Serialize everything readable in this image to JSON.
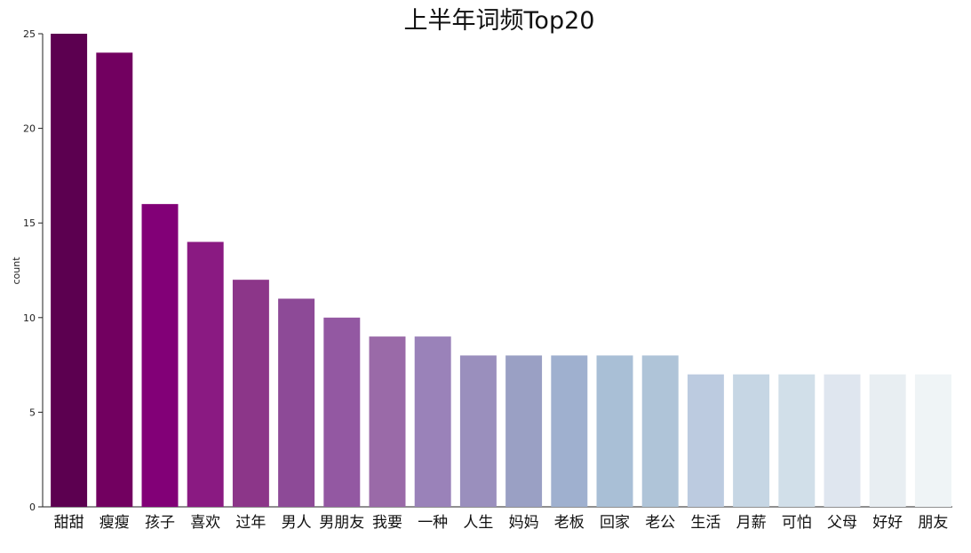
{
  "chart_data": {
    "type": "bar",
    "title": "上半年词频Top20",
    "xlabel": "",
    "ylabel": "count",
    "ylim": [
      0,
      25
    ],
    "yticks": [
      0,
      5,
      10,
      15,
      20,
      25
    ],
    "grid": false,
    "categories": [
      "甜甜",
      "瘦瘦",
      "孩子",
      "喜欢",
      "过年",
      "男人",
      "男朋友",
      "我要",
      "一种",
      "人生",
      "妈妈",
      "老板",
      "回家",
      "老公",
      "生活",
      "月薪",
      "可怕",
      "父母",
      "好好",
      "朋友"
    ],
    "values": [
      25,
      24,
      16,
      14,
      12,
      11,
      10,
      9,
      9,
      8,
      8,
      8,
      8,
      8,
      7,
      7,
      7,
      7,
      7,
      7
    ],
    "colors": [
      "#5c0050",
      "#720060",
      "#820077",
      "#8a1a82",
      "#8c3689",
      "#8d4a97",
      "#9358a2",
      "#9a6aa8",
      "#9a82b9",
      "#9a8fbd",
      "#9aa0c4",
      "#9fb0cf",
      "#a9bfd6",
      "#afc4d8",
      "#bccbe0",
      "#c6d6e4",
      "#d1dfe9",
      "#dfe6ef",
      "#e8eef2",
      "#eff4f6"
    ]
  }
}
